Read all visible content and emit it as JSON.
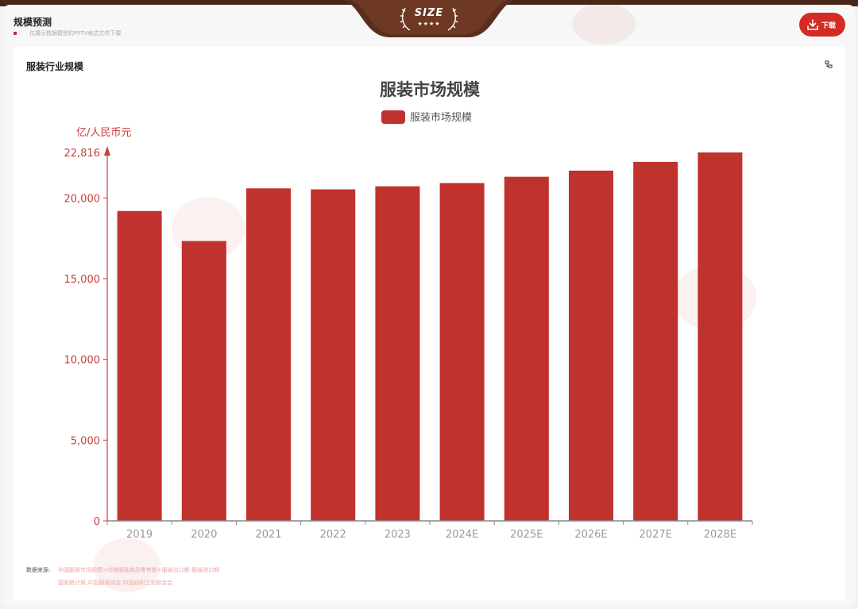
{
  "header": {
    "title": "规模预测",
    "note": "仅展示数据模型的PPTV格式文件下载"
  },
  "badge": {
    "text": "SIZE",
    "stars": "★★★★"
  },
  "download": {
    "label": "下载"
  },
  "card": {
    "title": "服装行业规模"
  },
  "colors": {
    "bar": "#c0322e",
    "axis_text": "#c8413c",
    "x_tick_text": "#999999",
    "accent": "#d52b25"
  },
  "chart_data": {
    "type": "bar",
    "title": "服装市场规模",
    "ylabel": "亿/人民币元",
    "legend": "top-center",
    "ylim": [
      0,
      22816
    ],
    "ymax_label": "22,816",
    "yticks": [
      0,
      5000,
      10000,
      15000,
      20000
    ],
    "ytick_labels": [
      "0",
      "5,000",
      "10,000",
      "15,000",
      "20,000"
    ],
    "grid": false,
    "categories": [
      "2019",
      "2020",
      "2021",
      "2022",
      "2023",
      "2024E",
      "2025E",
      "2026E",
      "2027E",
      "2028E"
    ],
    "series": [
      {
        "name": "服装市场规模",
        "values": [
          19190,
          17330,
          20590,
          20530,
          20720,
          20920,
          21310,
          21690,
          22230,
          22816
        ]
      }
    ]
  },
  "source": {
    "label": "数据来源:",
    "line1": "中国服装市场规模=内销服装商品零售额+服装出口额-服装进口额",
    "line2": "国家统计局,中国服装协会,中国纺织工业联合会"
  }
}
